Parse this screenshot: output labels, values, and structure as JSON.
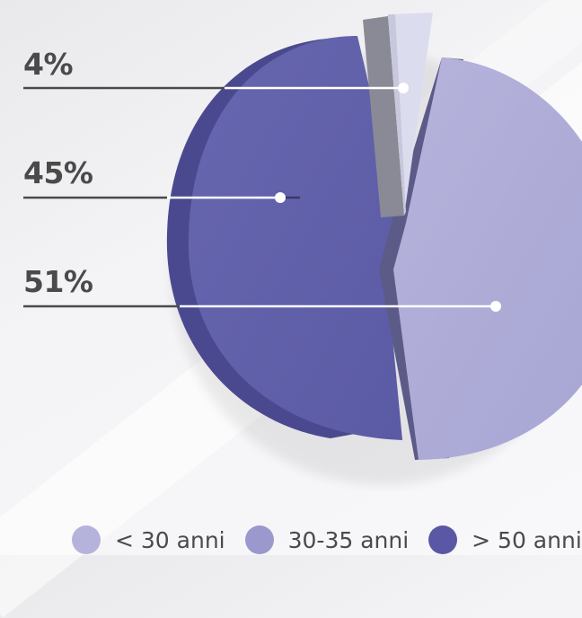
{
  "chart_data": {
    "type": "pie",
    "slices": [
      {
        "value": 4,
        "label": "4%",
        "color": "#ddddf0",
        "side": "#8a8a96"
      },
      {
        "value": 45,
        "label": "45%",
        "color": "#5f5ea8",
        "side": "#4a4990"
      },
      {
        "value": 51,
        "label": "51%",
        "color": "#adabd6",
        "side": "#5c5b88"
      }
    ],
    "legend": [
      {
        "label": "< 30 anni",
        "color": "#b5b3dc"
      },
      {
        "label": "30-35 anni",
        "color": "#9a98cc"
      },
      {
        "label": "> 50 anni",
        "color": "#5a58a4"
      }
    ],
    "legend_position": "bottom"
  }
}
